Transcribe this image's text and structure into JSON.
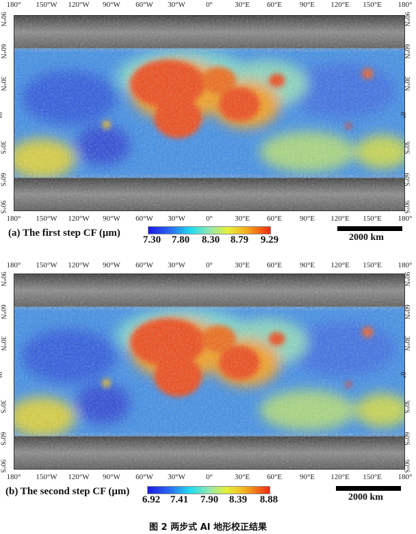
{
  "axes": {
    "longitude": [
      "180°",
      "150°W",
      "120°W",
      "90°W",
      "60°W",
      "30°W",
      "0°",
      "30°E",
      "60°E",
      "90°E",
      "120°E",
      "150°E",
      "180°"
    ],
    "latitude": [
      "90°N",
      "60°N",
      "30°N",
      "0°",
      "30°S",
      "60°S",
      "90°S"
    ]
  },
  "panels": [
    {
      "caption": "(a)   The first step CF (μm)",
      "colorbar_ticks": [
        "7.30",
        "7.80",
        "8.30",
        "8.79",
        "9.29"
      ],
      "colorbar_range": [
        7.3,
        9.29
      ],
      "scale_label": "2000 km"
    },
    {
      "caption": "(b) The second step CF (μm)",
      "colorbar_ticks": [
        "6.92",
        "7.41",
        "7.90",
        "8.39",
        "8.88"
      ],
      "colorbar_range": [
        6.92,
        8.88
      ],
      "scale_label": "2000 km"
    }
  ],
  "figure_title": "图 2 两步式 AI 地形校正结果",
  "colors": {
    "low": "#1a1ae6",
    "mid": "#22dcf0",
    "high": "#f02a10"
  }
}
